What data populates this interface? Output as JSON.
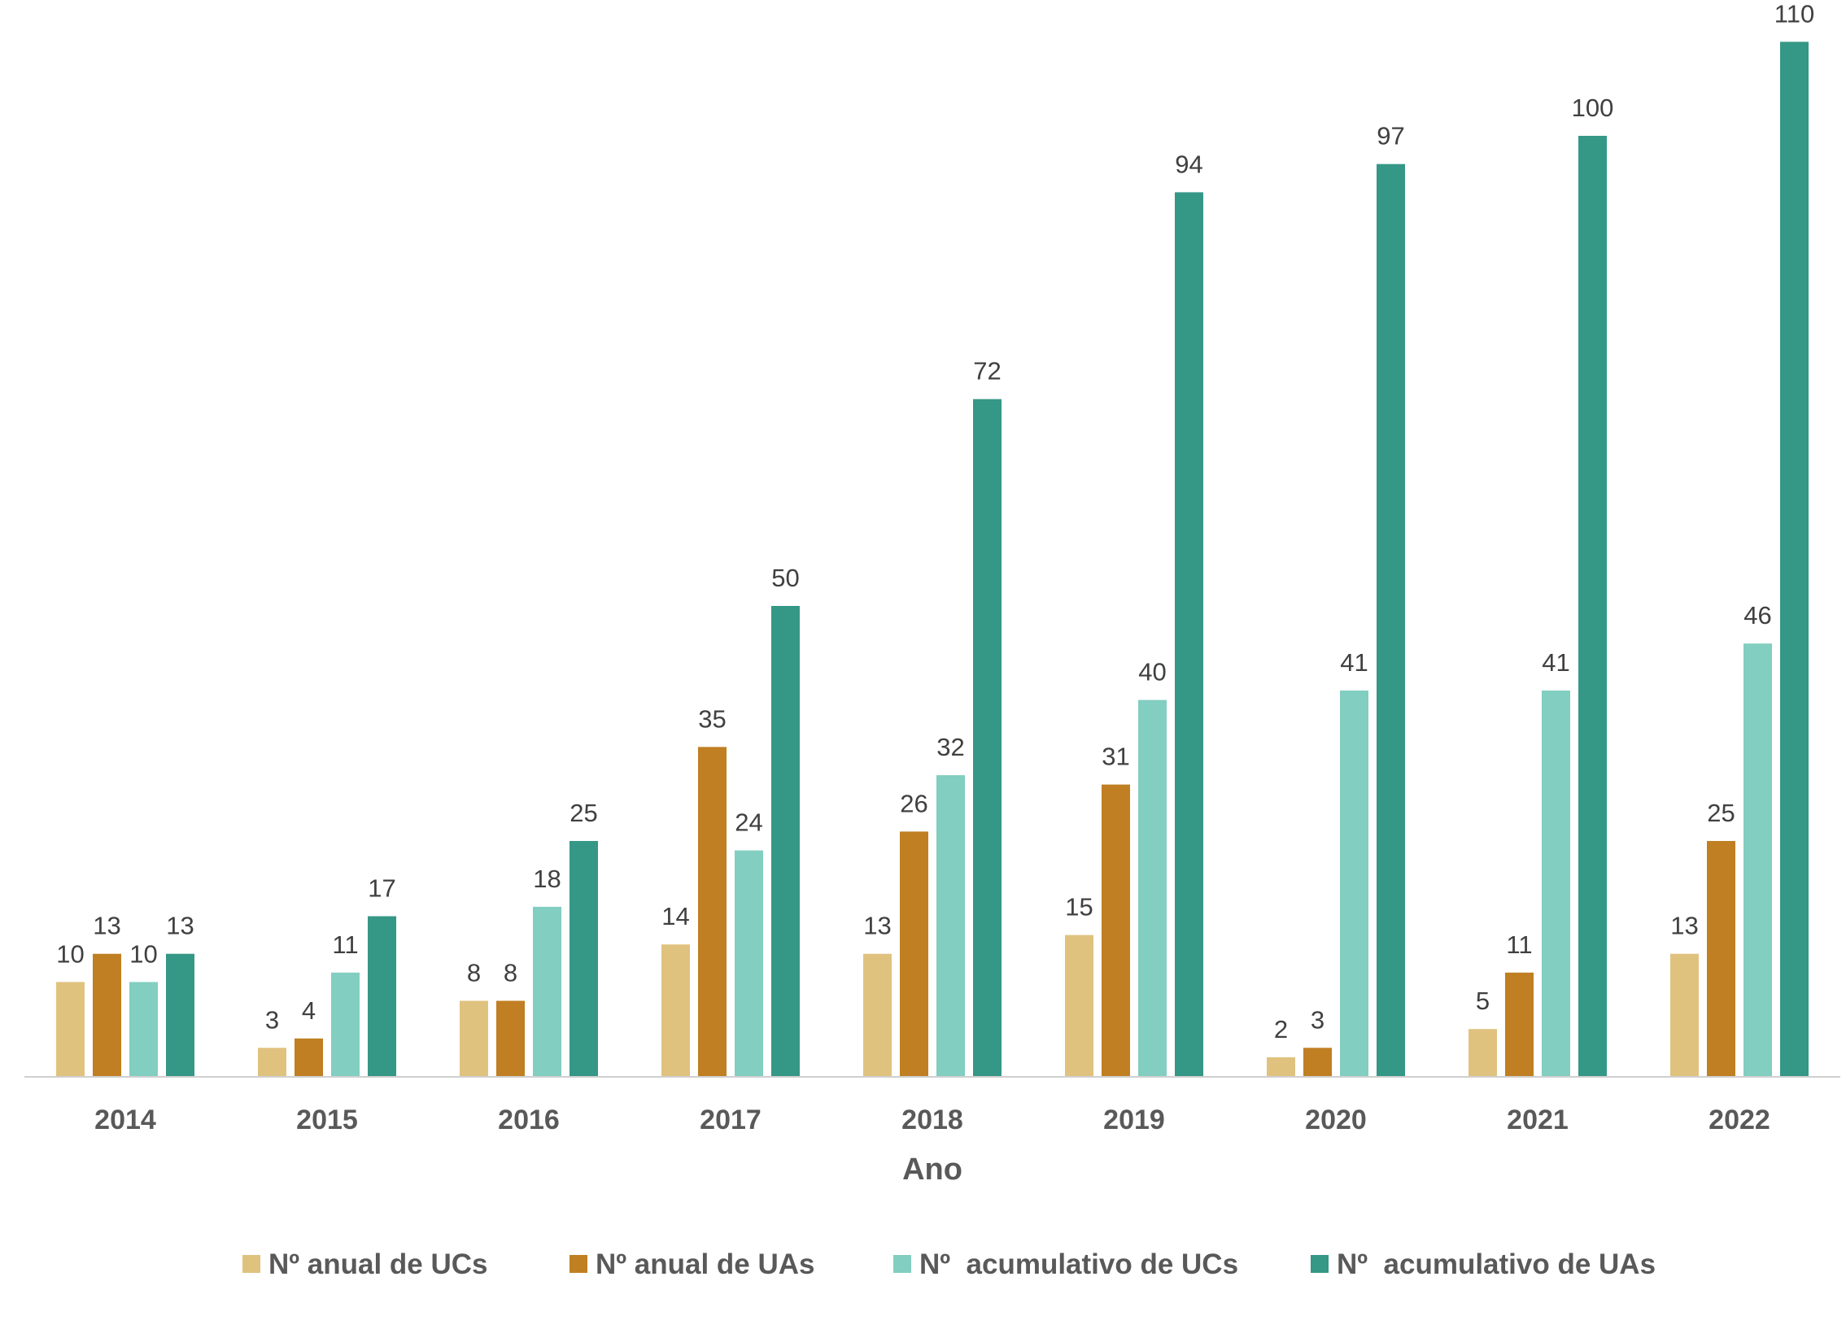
{
  "chart_data": {
    "type": "bar",
    "title": "",
    "xlabel": "Ano",
    "ylabel": "",
    "ylim": [
      0,
      110
    ],
    "grid": false,
    "legend_position": "bottom",
    "categories": [
      "2014",
      "2015",
      "2016",
      "2017",
      "2018",
      "2019",
      "2020",
      "2021",
      "2022"
    ],
    "series": [
      {
        "name": "Nº anual de UCs",
        "color": "#E0C27F",
        "values": [
          10,
          3,
          8,
          14,
          13,
          15,
          2,
          5,
          13
        ]
      },
      {
        "name": "Nº anual de UAs",
        "color": "#BF7F22",
        "values": [
          13,
          4,
          8,
          35,
          26,
          31,
          3,
          11,
          25
        ]
      },
      {
        "name": "Nº  acumulativo de UCs",
        "color": "#82CEC1",
        "values": [
          10,
          11,
          18,
          24,
          32,
          40,
          41,
          41,
          46
        ]
      },
      {
        "name": "Nº  acumulativo de UAs",
        "color": "#359786",
        "values": [
          13,
          17,
          25,
          50,
          72,
          94,
          97,
          100,
          110
        ]
      }
    ]
  }
}
